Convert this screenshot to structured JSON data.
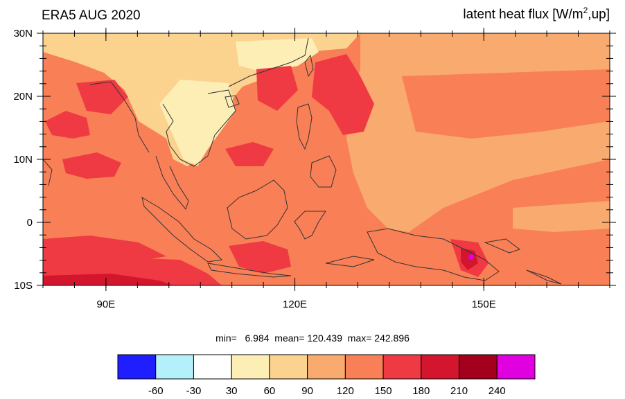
{
  "header": {
    "left_title": "ERA5 AUG 2020",
    "right_title_pre": "latent heat flux [W/m",
    "right_title_sup": "2",
    "right_title_post": ",up]"
  },
  "map": {
    "lon_range": [
      80,
      170
    ],
    "lat_range": [
      -10,
      30
    ],
    "lat_ticks": [
      {
        "value": 30,
        "label": "30N"
      },
      {
        "value": 20,
        "label": "20N"
      },
      {
        "value": 10,
        "label": "10N"
      },
      {
        "value": 0,
        "label": "0"
      },
      {
        "value": -10,
        "label": "10S"
      }
    ],
    "lon_ticks": [
      {
        "value": 90,
        "label": "90E"
      },
      {
        "value": 120,
        "label": "120E"
      },
      {
        "value": 150,
        "label": "150E"
      }
    ],
    "field_colors": {
      "30-60": "#fdeeb6",
      "60-90": "#fbd28e",
      "90-120": "#f9aa6e",
      "120-150": "#f87f56",
      "150-180": "#ef3a43",
      "180-210": "#d3162e",
      "240+": "#e000e0"
    }
  },
  "stats": {
    "text": "min=   6.984  mean= 120.439  max= 242.896"
  },
  "colorbar": {
    "colors": [
      "#1e1eff",
      "#b4f0fa",
      "#ffffff",
      "#fdeeb6",
      "#fbd28e",
      "#f9aa6e",
      "#f87f56",
      "#ef3a43",
      "#d3162e",
      "#a3001e",
      "#e000e0"
    ],
    "labels": [
      "-60",
      "-30",
      "30",
      "60",
      "90",
      "120",
      "150",
      "180",
      "210",
      "240"
    ]
  }
}
